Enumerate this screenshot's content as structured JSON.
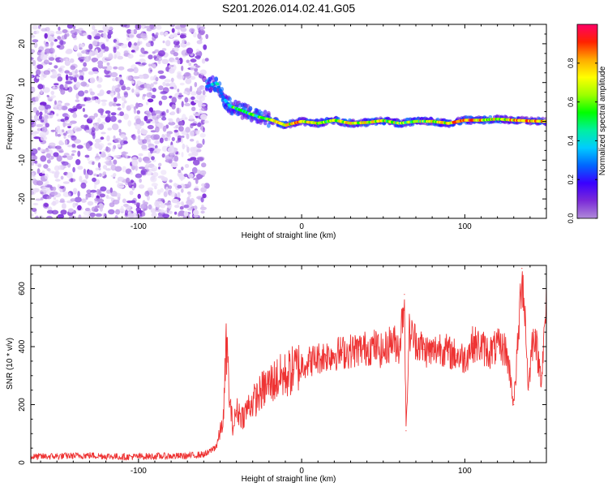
{
  "title": "S201.2026.014.02.41.G05",
  "chart_data": [
    {
      "type": "heatmap",
      "panel": "spectrogram",
      "xlabel": "Height of straight line (km)",
      "ylabel": "Frequency (Hz)",
      "xlim": [
        -166,
        150
      ],
      "ylim": [
        -25,
        25
      ],
      "xticks": [
        -100,
        0,
        100
      ],
      "yticks": [
        -20,
        -10,
        0,
        10,
        20
      ],
      "colorbar": {
        "label": "Normalized spectral amplitude",
        "range": [
          0,
          1
        ],
        "ticks": [
          0.0,
          0.2,
          0.4,
          0.6,
          0.8
        ],
        "colormap": [
          "#b08ad8",
          "#7b2ad8",
          "#3a00ff",
          "#0066ff",
          "#00ccff",
          "#00f0a0",
          "#00ff00",
          "#9dff00",
          "#ffff00",
          "#ffaa00",
          "#ff2200",
          "#ff0066"
        ]
      },
      "noise_region_x": [
        -166,
        -58
      ],
      "signal_track": [
        {
          "x": -58,
          "y": 9,
          "amp": 0.25
        },
        {
          "x": -52,
          "y": 10,
          "amp": 0.3
        },
        {
          "x": -48,
          "y": 6,
          "amp": 0.35
        },
        {
          "x": -44,
          "y": 4,
          "amp": 0.45
        },
        {
          "x": -38,
          "y": 3,
          "amp": 0.45
        },
        {
          "x": -32,
          "y": 2,
          "amp": 0.5
        },
        {
          "x": -25,
          "y": 1,
          "amp": 0.55
        },
        {
          "x": -18,
          "y": 0.3,
          "amp": 0.75
        },
        {
          "x": -10,
          "y": -1,
          "amp": 0.65
        },
        {
          "x": 0,
          "y": 0,
          "amp": 0.8
        },
        {
          "x": 10,
          "y": -0.5,
          "amp": 0.65
        },
        {
          "x": 20,
          "y": 0.3,
          "amp": 0.6
        },
        {
          "x": 30,
          "y": -0.5,
          "amp": 0.7
        },
        {
          "x": 40,
          "y": -0.3,
          "amp": 0.7
        },
        {
          "x": 50,
          "y": 0.2,
          "amp": 0.65
        },
        {
          "x": 60,
          "y": -0.5,
          "amp": 0.6
        },
        {
          "x": 70,
          "y": 0,
          "amp": 0.6
        },
        {
          "x": 80,
          "y": 0,
          "amp": 0.65
        },
        {
          "x": 90,
          "y": -0.5,
          "amp": 0.7
        },
        {
          "x": 100,
          "y": 0.3,
          "amp": 0.85
        },
        {
          "x": 110,
          "y": 0.3,
          "amp": 0.75
        },
        {
          "x": 120,
          "y": 0.6,
          "amp": 0.7
        },
        {
          "x": 130,
          "y": 0.3,
          "amp": 0.75
        },
        {
          "x": 140,
          "y": 0.1,
          "amp": 0.8
        },
        {
          "x": 150,
          "y": 0,
          "amp": 0.8
        }
      ]
    },
    {
      "type": "line",
      "panel": "snr",
      "xlabel": "Height of straight line (km)",
      "ylabel": "SNR (10 * v/v)",
      "xlim": [
        -166,
        150
      ],
      "ylim": [
        0,
        680
      ],
      "xticks": [
        -100,
        0,
        100
      ],
      "yticks": [
        0,
        200,
        400,
        600
      ],
      "color": "#ee3333",
      "series": [
        {
          "name": "SNR",
          "x": [
            -166,
            -150,
            -130,
            -110,
            -90,
            -70,
            -58,
            -52,
            -48,
            -46,
            -44,
            -42,
            -40,
            -36,
            -32,
            -28,
            -24,
            -20,
            -15,
            -10,
            -5,
            0,
            5,
            10,
            15,
            20,
            25,
            30,
            35,
            40,
            45,
            50,
            55,
            60,
            63,
            64,
            66,
            70,
            75,
            80,
            85,
            90,
            95,
            100,
            105,
            110,
            115,
            120,
            125,
            128,
            130,
            133,
            135,
            137,
            139,
            141,
            143,
            145,
            147,
            150
          ],
          "values": [
            20,
            22,
            25,
            20,
            22,
            23,
            30,
            60,
            150,
            420,
            200,
            120,
            180,
            160,
            200,
            220,
            250,
            270,
            290,
            300,
            320,
            340,
            350,
            360,
            370,
            375,
            380,
            385,
            390,
            395,
            400,
            380,
            420,
            400,
            580,
            110,
            450,
            420,
            390,
            380,
            400,
            380,
            370,
            360,
            410,
            400,
            380,
            400,
            390,
            300,
            200,
            450,
            670,
            500,
            250,
            400,
            450,
            350,
            300,
            540
          ]
        }
      ]
    }
  ]
}
